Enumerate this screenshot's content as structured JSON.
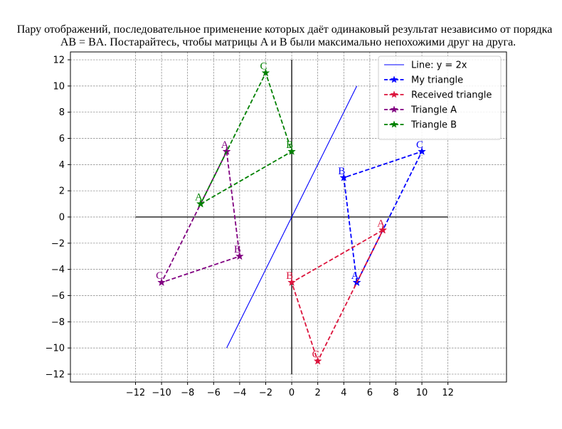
{
  "chart_data": {
    "type": "line",
    "title_line1": "Пару отображений, последовательное применение которых даёт одинаковый результат независимо от порядка",
    "title_line2": "AB = BA. Постарайтесь, чтобы матрицы A и B были максимально непохожими друг на друга.",
    "xlim": [
      -17,
      16.5
    ],
    "ylim": [
      -12.6,
      12.6
    ],
    "xticks": [
      -12,
      -10,
      -8,
      -6,
      -4,
      -2,
      0,
      2,
      4,
      6,
      8,
      10,
      12
    ],
    "yticks": [
      -12,
      -10,
      -8,
      -6,
      -4,
      -2,
      0,
      2,
      4,
      6,
      8,
      10,
      12
    ],
    "tick_minus": "−",
    "grid": true,
    "axes_lines": {
      "x": [
        -12,
        12
      ],
      "y": [
        -12,
        12
      ]
    },
    "legend_position": "top-right",
    "series": [
      {
        "name": "Line: y = 2x",
        "color": "#0000ff",
        "style": "solid",
        "marker": "none",
        "x": [
          -5,
          5
        ],
        "y": [
          -10,
          10
        ],
        "closed": false,
        "vertex_labels": []
      },
      {
        "name": "My triangle",
        "color": "#0000ff",
        "style": "dashed",
        "marker": "star",
        "x": [
          5,
          4,
          10
        ],
        "y": [
          -5,
          3,
          5
        ],
        "closed": true,
        "vertex_labels": [
          "A",
          "B",
          "C"
        ]
      },
      {
        "name": "Received triangle",
        "color": "#dc143c",
        "style": "dashed",
        "marker": "star",
        "x": [
          7,
          0,
          2
        ],
        "y": [
          -1,
          -5,
          -11
        ],
        "closed": true,
        "vertex_labels": [
          "A",
          "B",
          "C"
        ]
      },
      {
        "name": "Triangle A",
        "color": "#800080",
        "style": "dashed",
        "marker": "star",
        "x": [
          -5,
          -4,
          -10
        ],
        "y": [
          5,
          -3,
          -5
        ],
        "closed": true,
        "vertex_labels": [
          "A",
          "B",
          "C"
        ]
      },
      {
        "name": "Triangle B",
        "color": "#008000",
        "style": "dashed",
        "marker": "star",
        "x": [
          -7,
          0,
          -2
        ],
        "y": [
          1,
          5,
          11
        ],
        "closed": true,
        "vertex_labels": [
          "A",
          "B",
          "C"
        ]
      }
    ]
  }
}
